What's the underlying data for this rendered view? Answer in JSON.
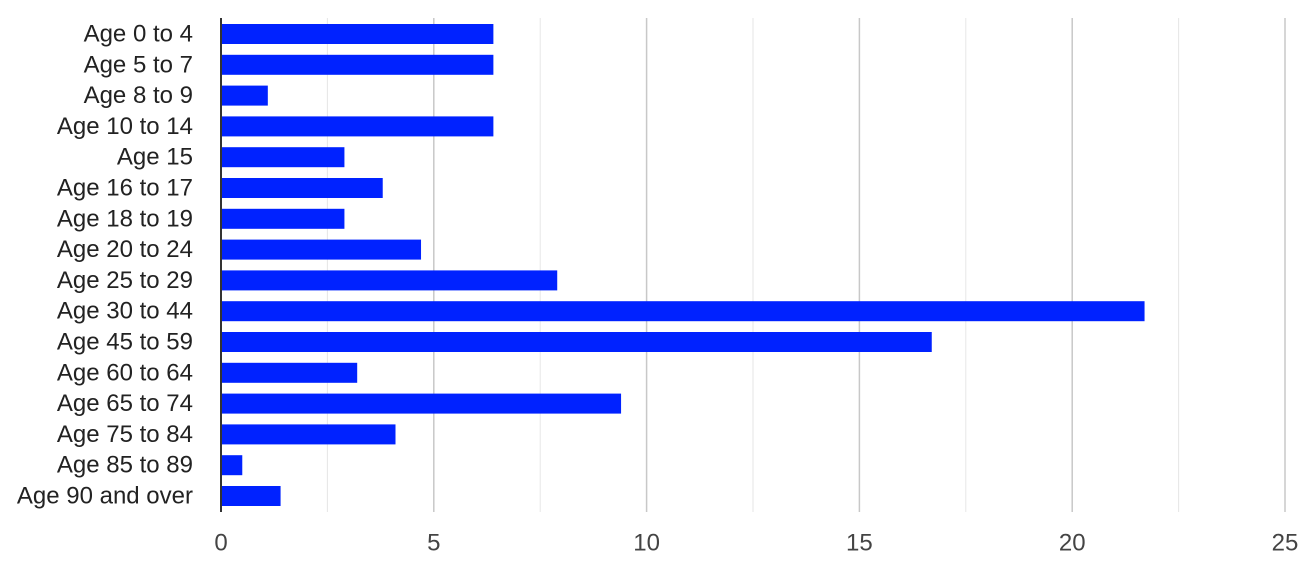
{
  "chart_data": {
    "type": "bar",
    "orientation": "horizontal",
    "categories": [
      "Age 0 to 4",
      "Age 5 to 7",
      "Age 8 to 9",
      "Age 10 to 14",
      "Age 15",
      "Age 16 to 17",
      "Age 18 to 19",
      "Age 20 to 24",
      "Age 25 to 29",
      "Age 30 to 44",
      "Age 45 to 59",
      "Age 60 to 64",
      "Age 65 to 74",
      "Age 75 to 84",
      "Age 85 to 89",
      "Age 90 and over"
    ],
    "values": [
      6.4,
      6.4,
      1.1,
      6.4,
      2.9,
      3.8,
      2.9,
      4.7,
      7.9,
      21.7,
      16.7,
      3.2,
      9.4,
      4.1,
      0.5,
      1.4
    ],
    "xlim": [
      0,
      25
    ],
    "x_ticks": [
      "0",
      "5",
      "10",
      "15",
      "20",
      "25"
    ],
    "x_tick_values": [
      0,
      5,
      10,
      15,
      20,
      25
    ],
    "minor_grid_values": [
      2.5,
      7.5,
      12.5,
      17.5,
      22.5
    ],
    "grid": true,
    "legend": "none",
    "colors": {
      "bar": "#0022ff",
      "major_grid": "#c8c8c8",
      "minor_grid": "#e6e6e6",
      "axis": "#333333"
    }
  }
}
